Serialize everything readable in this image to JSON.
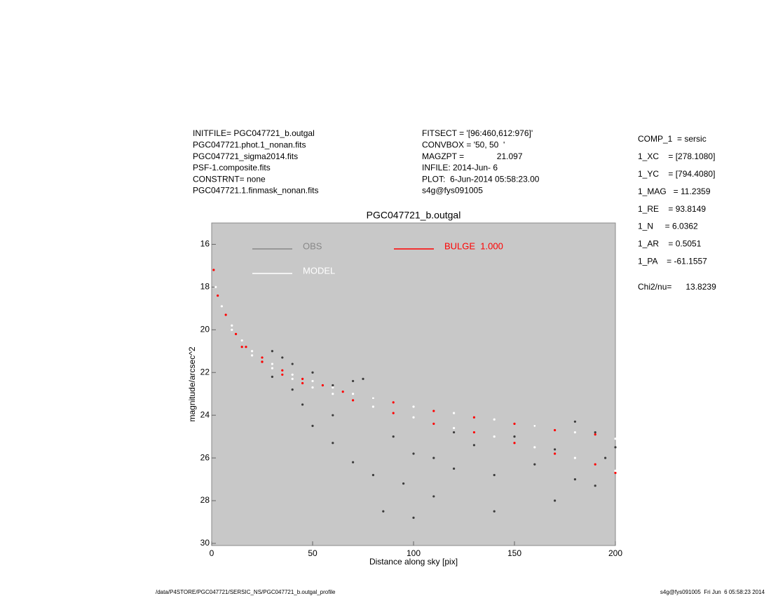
{
  "header": {
    "left": [
      "INITFILE= PGC047721_b.outgal",
      "PGC047721.phot.1_nonan.fits",
      "PGC047721_sigma2014.fits",
      "PSF-1.composite.fits",
      "CONSTRNT= none",
      "PGC047721.1.finmask_nonan.fits"
    ],
    "middle": [
      "FITSECT = '[96:460,612:976]'",
      "CONVBOX = '50, 50  '",
      "MAGZPT =              21.097",
      "INFILE: 2014-Jun- 6",
      "PLOT:  6-Jun-2014 05:58:23.00",
      "s4g@fys091005"
    ],
    "right": [
      "COMP_1  = sersic",
      "1_XC    = [278.1080]",
      "1_YC    = [794.4080]",
      "1_MAG   = 11.2359",
      "1_RE    = 93.8149",
      "1_N     = 6.0362",
      "1_AR    = 0.5051",
      "1_PA    = -61.1557"
    ],
    "chi": "Chi2/nu=      13.8239"
  },
  "footer": {
    "left": "/data/P4STORE/PGC047721/SERSIC_NS/PGC047721_b.outgal_profile",
    "right": "s4g@fys091005  Fri Jun  6 05:58:23 2014"
  },
  "chart_data": {
    "type": "scatter",
    "title": "PGC047721_b.outgal",
    "x_label": "Distance along sky [pix]",
    "y_label": "magnitude/arcsec^2",
    "xlim": [
      0,
      200
    ],
    "xticks": [
      0,
      50,
      100,
      150,
      200
    ],
    "ylim": [
      30.1,
      15
    ],
    "yticks": [
      16,
      18,
      20,
      22,
      24,
      26,
      28,
      30
    ],
    "background": "#c8c8c8",
    "series": [
      {
        "name": "OBS",
        "color": "#3c3c3c",
        "legend_color": "#888888",
        "x": [
          25,
          30,
          35,
          40,
          50,
          60,
          70,
          75,
          80,
          45,
          50,
          60,
          70,
          80,
          90,
          100,
          110,
          120,
          130,
          140,
          150,
          160,
          170,
          180,
          190,
          200,
          85,
          95,
          110,
          140,
          170,
          190,
          60,
          40,
          30,
          120,
          160,
          180,
          195,
          100
        ],
        "values": [
          21.5,
          21.0,
          21.3,
          21.6,
          22.0,
          22.6,
          22.4,
          22.3,
          23.2,
          23.5,
          24.5,
          25.3,
          26.2,
          26.8,
          25.0,
          25.8,
          26.0,
          26.5,
          25.4,
          26.8,
          25.0,
          26.3,
          25.6,
          27.0,
          24.8,
          25.5,
          28.5,
          27.2,
          27.8,
          28.5,
          28.0,
          27.3,
          24.0,
          22.8,
          22.2,
          24.8,
          24.5,
          24.3,
          26.0,
          28.8
        ]
      },
      {
        "name": "MODEL",
        "color": "#ffffff",
        "x": [
          2,
          5,
          10,
          15,
          20,
          30,
          40,
          50,
          60,
          70,
          80,
          100,
          120,
          140,
          160,
          180,
          200,
          10,
          20,
          30,
          40,
          50,
          60,
          80,
          100,
          120,
          140,
          160,
          180,
          200
        ],
        "values": [
          18.0,
          18.9,
          19.8,
          20.5,
          21.0,
          21.6,
          22.1,
          22.4,
          22.7,
          23.0,
          23.2,
          23.6,
          23.9,
          24.2,
          24.5,
          24.8,
          25.1,
          20.0,
          21.2,
          21.8,
          22.3,
          22.7,
          23.0,
          23.6,
          24.1,
          24.6,
          25.0,
          25.5,
          26.0,
          26.6
        ]
      },
      {
        "name": "BULGE  1.000",
        "color": "#ff0000",
        "x": [
          1,
          3,
          7,
          12,
          17,
          25,
          35,
          45,
          55,
          65,
          90,
          110,
          130,
          150,
          170,
          190,
          15,
          25,
          35,
          45,
          70,
          90,
          110,
          130,
          150,
          170,
          190,
          200
        ],
        "values": [
          17.2,
          18.4,
          19.3,
          20.2,
          20.8,
          21.3,
          21.9,
          22.3,
          22.6,
          22.9,
          23.4,
          23.8,
          24.1,
          24.4,
          24.7,
          24.9,
          20.8,
          21.5,
          22.1,
          22.5,
          23.3,
          23.9,
          24.4,
          24.8,
          25.3,
          25.8,
          26.3,
          26.7
        ]
      }
    ]
  }
}
